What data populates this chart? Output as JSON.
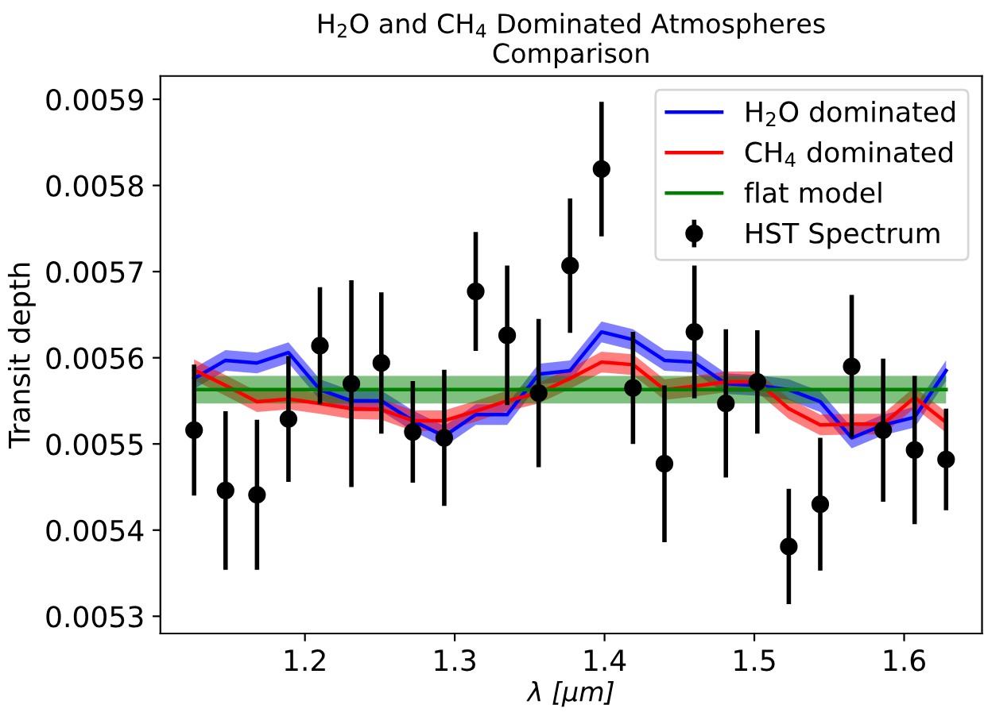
{
  "chart_data": {
    "type": "line",
    "title": "H$_{2}$O and CH$_{4}$ Dominated Atmospheres\nComparison",
    "xlabel": "λ [μm]",
    "ylabel": "Transit depth",
    "x": [
      1.126,
      1.147,
      1.168,
      1.189,
      1.21,
      1.231,
      1.251,
      1.272,
      1.293,
      1.314,
      1.335,
      1.356,
      1.377,
      1.398,
      1.419,
      1.44,
      1.46,
      1.481,
      1.502,
      1.523,
      1.544,
      1.565,
      1.586,
      1.607,
      1.628
    ],
    "series": [
      {
        "name": "H$_{2}$O dominated",
        "color": "#0000ff",
        "values": [
          0.005576,
          0.005597,
          0.005594,
          0.005606,
          0.005563,
          0.00555,
          0.00555,
          0.005527,
          0.005509,
          0.005534,
          0.005534,
          0.005581,
          0.005585,
          0.00563,
          0.005621,
          0.005597,
          0.005595,
          0.00557,
          0.005568,
          0.005563,
          0.005549,
          0.005507,
          0.005522,
          0.005531,
          0.005585
        ],
        "lower": [
          0.005564,
          0.005585,
          0.005582,
          0.005594,
          0.005551,
          0.005538,
          0.005538,
          0.005515,
          0.005497,
          0.005522,
          0.005522,
          0.005569,
          0.005573,
          0.005618,
          0.005609,
          0.005585,
          0.005583,
          0.005558,
          0.005556,
          0.005551,
          0.005537,
          0.005495,
          0.00551,
          0.005519,
          0.005573
        ],
        "upper": [
          0.005588,
          0.005609,
          0.005606,
          0.005618,
          0.005575,
          0.005562,
          0.005562,
          0.005539,
          0.005521,
          0.005546,
          0.005546,
          0.005593,
          0.005597,
          0.005642,
          0.005633,
          0.005609,
          0.005607,
          0.005582,
          0.00558,
          0.005575,
          0.005561,
          0.005519,
          0.005534,
          0.005543,
          0.005597
        ]
      },
      {
        "name": "CH$_{4}$ dominated",
        "color": "#ff0000",
        "values": [
          0.005586,
          0.005568,
          0.005549,
          0.005552,
          0.005547,
          0.005541,
          0.00554,
          0.005527,
          0.005527,
          0.005538,
          0.00555,
          0.005559,
          0.005576,
          0.005595,
          0.005592,
          0.005563,
          0.005567,
          0.005572,
          0.005572,
          0.005541,
          0.005522,
          0.005523,
          0.005523,
          0.005554,
          0.005525
        ],
        "lower": [
          0.005574,
          0.005556,
          0.005537,
          0.00554,
          0.005535,
          0.005529,
          0.005528,
          0.005515,
          0.005515,
          0.005526,
          0.005538,
          0.005547,
          0.005564,
          0.005583,
          0.00558,
          0.005551,
          0.005555,
          0.00556,
          0.00556,
          0.005529,
          0.00551,
          0.005511,
          0.005511,
          0.005542,
          0.005513
        ],
        "upper": [
          0.005598,
          0.00558,
          0.005561,
          0.005564,
          0.005559,
          0.005553,
          0.005552,
          0.005539,
          0.005539,
          0.00555,
          0.005562,
          0.005571,
          0.005588,
          0.005607,
          0.005604,
          0.005575,
          0.005579,
          0.005584,
          0.005584,
          0.005553,
          0.005534,
          0.005535,
          0.005535,
          0.005566,
          0.005537
        ]
      },
      {
        "name": "flat model",
        "color": "#008000",
        "values": [
          0.005563,
          0.005563,
          0.005563,
          0.005563,
          0.005563,
          0.005563,
          0.005563,
          0.005563,
          0.005563,
          0.005563,
          0.005563,
          0.005563,
          0.005563,
          0.005563,
          0.005563,
          0.005563,
          0.005563,
          0.005563,
          0.005563,
          0.005563,
          0.005563,
          0.005563,
          0.005563,
          0.005563,
          0.005563
        ],
        "lower": [
          0.005547,
          0.005547,
          0.005547,
          0.005547,
          0.005547,
          0.005547,
          0.005547,
          0.005547,
          0.005547,
          0.005547,
          0.005547,
          0.005547,
          0.005547,
          0.005547,
          0.005547,
          0.005547,
          0.005547,
          0.005547,
          0.005547,
          0.005547,
          0.005547,
          0.005547,
          0.005547,
          0.005547,
          0.005547
        ],
        "upper": [
          0.005579,
          0.005579,
          0.005579,
          0.005579,
          0.005579,
          0.005579,
          0.005579,
          0.005579,
          0.005579,
          0.005579,
          0.005579,
          0.005579,
          0.005579,
          0.005579,
          0.005579,
          0.005579,
          0.005579,
          0.005579,
          0.005579,
          0.005579,
          0.005579,
          0.005579,
          0.005579,
          0.005579,
          0.005579
        ]
      },
      {
        "name": "HST Spectrum",
        "type": "scatter",
        "color": "#000000",
        "marker": "circle",
        "values": [
          0.005516,
          0.005446,
          0.005441,
          0.005529,
          0.005614,
          0.00557,
          0.005594,
          0.005514,
          0.005507,
          0.005677,
          0.005626,
          0.005559,
          0.005707,
          0.005819,
          0.005565,
          0.005477,
          0.00563,
          0.005547,
          0.005572,
          0.005381,
          0.00543,
          0.00559,
          0.005516,
          0.005493,
          0.005482
        ],
        "errors": [
          7.6e-05,
          9.2e-05,
          8.7e-05,
          7.3e-05,
          6.8e-05,
          0.00012,
          8.2e-05,
          5.9e-05,
          7.9e-05,
          6.9e-05,
          8.1e-05,
          8.6e-05,
          7.8e-05,
          7.8e-05,
          6.5e-05,
          9.1e-05,
          7.7e-05,
          8.6e-05,
          6e-05,
          6.7e-05,
          7.7e-05,
          8.3e-05,
          8.3e-05,
          8.6e-05,
          5.9e-05
        ]
      }
    ],
    "xlim": [
      1.1035,
      1.652
    ],
    "xticks": [
      1.2,
      1.3,
      1.4,
      1.5,
      1.6
    ],
    "ylim": [
      0.00528,
      0.005927
    ],
    "yticks": [
      0.0053,
      0.0054,
      0.0055,
      0.0056,
      0.0057,
      0.0058,
      0.0059
    ],
    "grid": false,
    "legend": "top right"
  }
}
